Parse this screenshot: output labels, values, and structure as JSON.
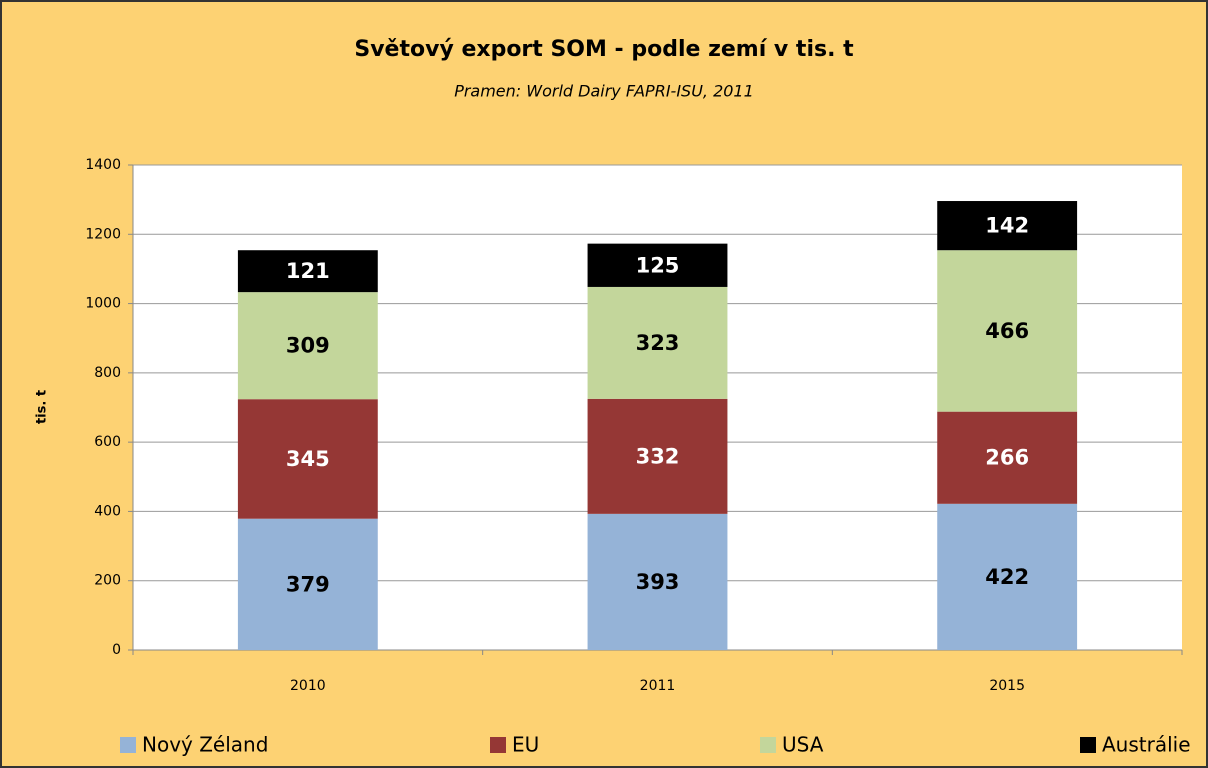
{
  "chart_data": {
    "type": "stacked_bar",
    "title": "Světový export SOM - podle zemí v tis. t",
    "subtitle": "Pramen: World Dairy FAPRI-ISU, 2011",
    "y_label": "tis. t",
    "categories": [
      "2010",
      "2011",
      "2015"
    ],
    "series": [
      {
        "name": "Nový Zéland",
        "color": "#95b3d7",
        "values": [
          379,
          393,
          422
        ]
      },
      {
        "name": "EU",
        "color": "#953735",
        "values": [
          345,
          332,
          266
        ]
      },
      {
        "name": "USA",
        "color": "#c3d69b",
        "values": [
          309,
          323,
          466
        ]
      },
      {
        "name": "Austrálie",
        "color": "#000000",
        "values": [
          121,
          125,
          142
        ]
      }
    ],
    "ylim": [
      0,
      1400
    ],
    "yticks": [
      0,
      200,
      400,
      600,
      800,
      1000,
      1200,
      1400
    ],
    "grid": true,
    "legend": "bottom"
  }
}
